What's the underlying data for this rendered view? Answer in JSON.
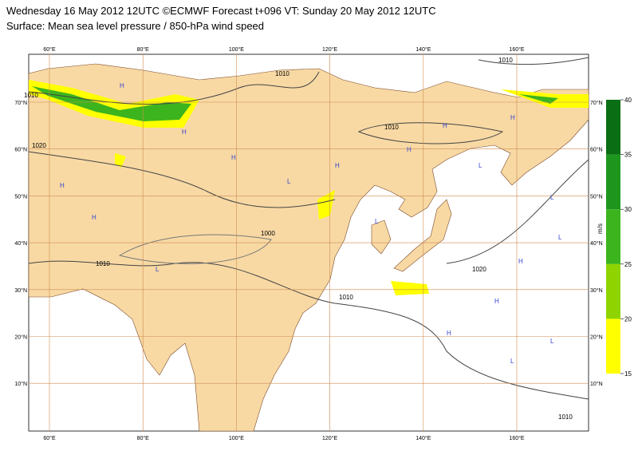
{
  "header": {
    "line1": "Wednesday 16 May 2012 12UTC ©ECMWF Forecast t+096 VT: Sunday 20 May 2012 12UTC",
    "line2": "Surface: Mean sea level pressure / 850-hPa wind speed"
  },
  "map": {
    "lon_ticks": [
      {
        "value": 60,
        "label": "60°E"
      },
      {
        "value": 80,
        "label": "80°E"
      },
      {
        "value": 100,
        "label": "100°E"
      },
      {
        "value": 120,
        "label": "120°E"
      },
      {
        "value": 140,
        "label": "140°E"
      },
      {
        "value": 160,
        "label": "160°E"
      }
    ],
    "lat_ticks": [
      {
        "value": 70,
        "label": "70°N"
      },
      {
        "value": 60,
        "label": "60°N"
      },
      {
        "value": 50,
        "label": "50°N"
      },
      {
        "value": 40,
        "label": "40°N"
      },
      {
        "value": 30,
        "label": "30°N"
      },
      {
        "value": 20,
        "label": "20°N"
      },
      {
        "value": 10,
        "label": "10°N"
      }
    ],
    "isobar_labels": [
      "1010",
      "1010",
      "1020",
      "1010",
      "1000",
      "1010",
      "1010",
      "1020",
      "1010",
      "1010"
    ],
    "pressure_centers": [
      "H",
      "H",
      "L",
      "H",
      "H",
      "L",
      "H",
      "L",
      "H",
      "H",
      "L",
      "H",
      "L",
      "H",
      "H",
      "L",
      "H",
      "L",
      "L",
      "H"
    ]
  },
  "colorbar": {
    "levels": [
      15,
      20,
      25,
      30,
      35,
      40
    ],
    "colors": [
      "#ffff00",
      "#8fd400",
      "#3cb41e",
      "#1e961e",
      "#0a6e14"
    ],
    "unit": "m/s"
  }
}
